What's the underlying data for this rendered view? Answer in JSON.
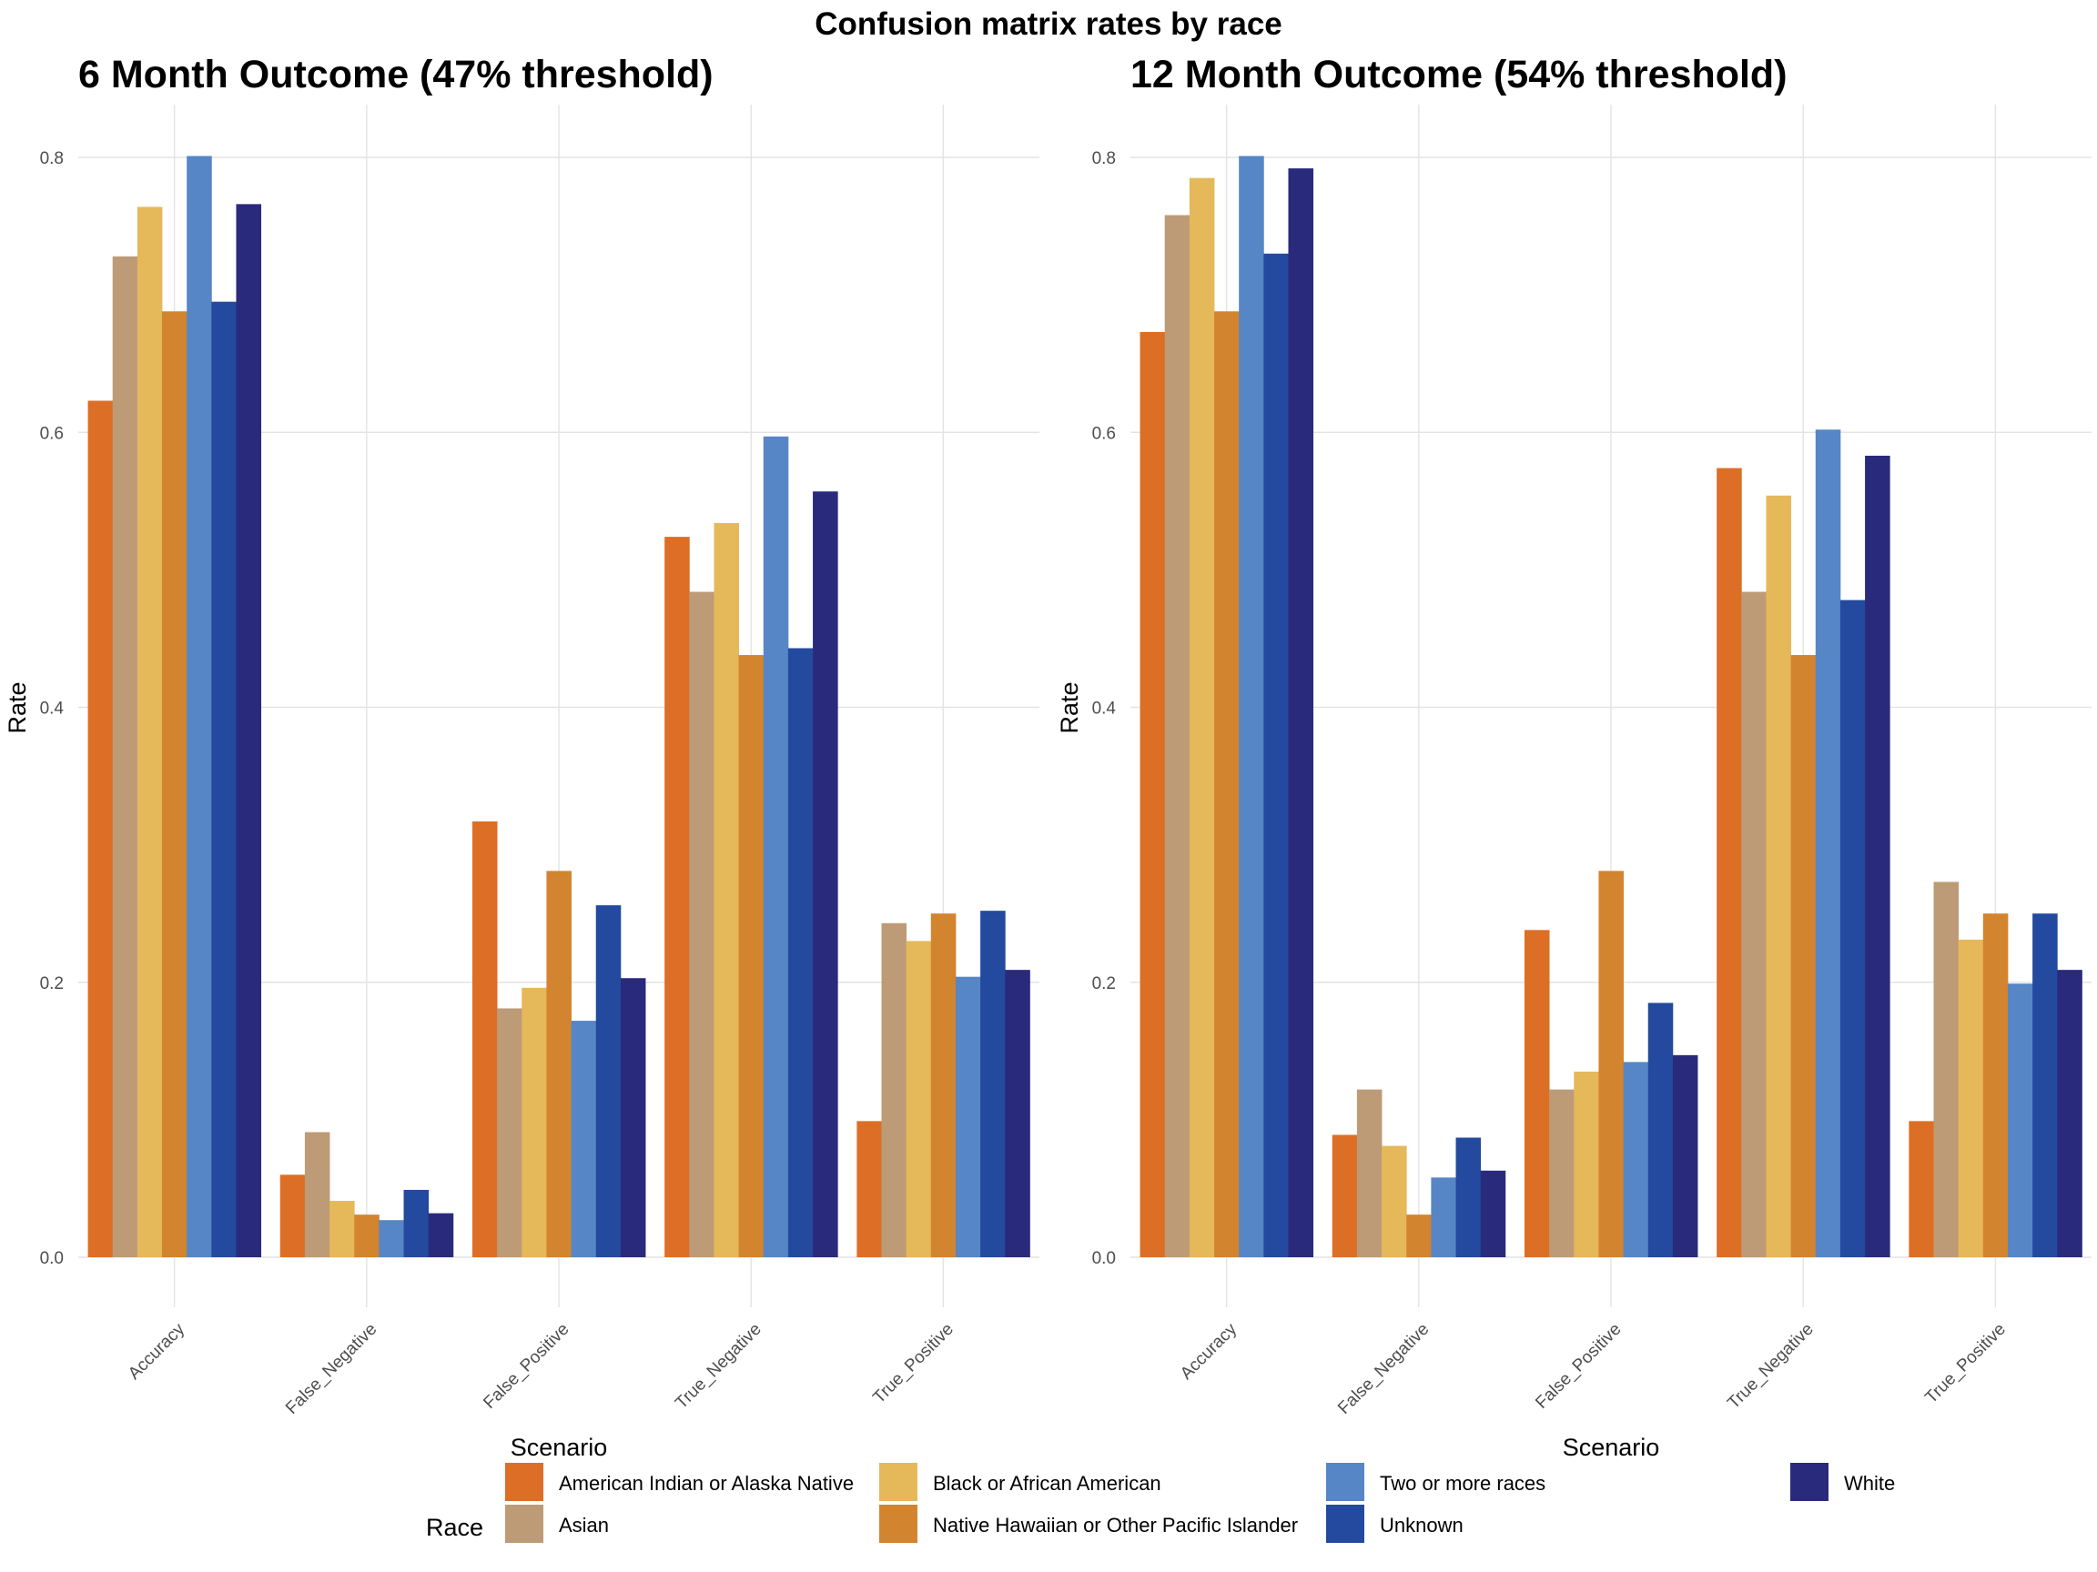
{
  "title": "Confusion matrix rates by race",
  "legend": {
    "title": "Race",
    "items": [
      {
        "label": "American Indian or Alaska Native",
        "color": "#DD6E26"
      },
      {
        "label": "Asian",
        "color": "#BD9B77"
      },
      {
        "label": "Black or African American",
        "color": "#E5B85A"
      },
      {
        "label": "Native Hawaiian or Other Pacific Islander",
        "color": "#D3842E"
      },
      {
        "label": "Two or more races",
        "color": "#5686C5"
      },
      {
        "label": "Unknown",
        "color": "#234A9E"
      },
      {
        "label": "White",
        "color": "#2A2A7C"
      }
    ]
  },
  "chart_data": [
    {
      "type": "bar",
      "title": "6 Month Outcome (47% threshold)",
      "xlabel": "Scenario",
      "ylabel": "Rate",
      "ylim": [
        0,
        0.8
      ],
      "yticks": [
        "0.0",
        "0.2",
        "0.4",
        "0.6",
        "0.8"
      ],
      "grid": true,
      "legend_position": "bottom",
      "categories": [
        "Accuracy",
        "False_Negative",
        "False_Positive",
        "True_Negative",
        "True_Positive"
      ],
      "series": [
        {
          "name": "American Indian or Alaska Native",
          "values": [
            0.623,
            0.06,
            0.317,
            0.524,
            0.099
          ]
        },
        {
          "name": "Asian",
          "values": [
            0.728,
            0.091,
            0.181,
            0.484,
            0.243
          ]
        },
        {
          "name": "Black or African American",
          "values": [
            0.764,
            0.041,
            0.196,
            0.534,
            0.23
          ]
        },
        {
          "name": "Native Hawaiian or Other Pacific Islander",
          "values": [
            0.688,
            0.031,
            0.281,
            0.438,
            0.25
          ]
        },
        {
          "name": "Two or more races",
          "values": [
            0.801,
            0.027,
            0.172,
            0.597,
            0.204
          ]
        },
        {
          "name": "Unknown",
          "values": [
            0.695,
            0.049,
            0.256,
            0.443,
            0.252
          ]
        },
        {
          "name": "White",
          "values": [
            0.766,
            0.032,
            0.203,
            0.557,
            0.209
          ]
        }
      ]
    },
    {
      "type": "bar",
      "title": "12 Month Outcome (54% threshold)",
      "xlabel": "Scenario",
      "ylabel": "Rate",
      "ylim": [
        0,
        0.8
      ],
      "yticks": [
        "0.0",
        "0.2",
        "0.4",
        "0.6",
        "0.8"
      ],
      "grid": true,
      "legend_position": "bottom",
      "categories": [
        "Accuracy",
        "False_Negative",
        "False_Positive",
        "True_Negative",
        "True_Positive"
      ],
      "series": [
        {
          "name": "American Indian or Alaska Native",
          "values": [
            0.673,
            0.089,
            0.238,
            0.574,
            0.099
          ]
        },
        {
          "name": "Asian",
          "values": [
            0.758,
            0.122,
            0.122,
            0.484,
            0.273
          ]
        },
        {
          "name": "Black or African American",
          "values": [
            0.785,
            0.081,
            0.135,
            0.554,
            0.231
          ]
        },
        {
          "name": "Native Hawaiian or Other Pacific Islander",
          "values": [
            0.688,
            0.031,
            0.281,
            0.438,
            0.25
          ]
        },
        {
          "name": "Two or more races",
          "values": [
            0.801,
            0.058,
            0.142,
            0.602,
            0.199
          ]
        },
        {
          "name": "Unknown",
          "values": [
            0.73,
            0.087,
            0.185,
            0.478,
            0.25
          ]
        },
        {
          "name": "White",
          "values": [
            0.792,
            0.063,
            0.147,
            0.583,
            0.209
          ]
        }
      ]
    }
  ]
}
